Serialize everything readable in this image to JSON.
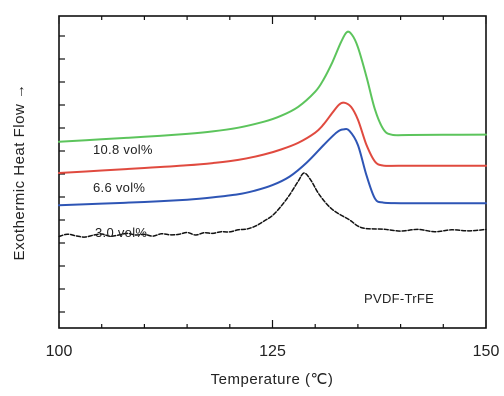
{
  "chart_data": {
    "type": "line",
    "title": "",
    "xlabel": "Temperature (℃)",
    "ylabel": "Exothermic Heat Flow →",
    "xlim": [
      100,
      150
    ],
    "x_ticks": [
      "100",
      "125",
      "150"
    ],
    "y_ticks_labeled": false,
    "grid": false,
    "legend": "inline labels next to curves",
    "series": [
      {
        "name": "10.8 vol%",
        "color": "#5cc45c",
        "style": "solid",
        "points": [
          [
            100,
            0.895
          ],
          [
            105,
            0.907
          ],
          [
            110,
            0.919
          ],
          [
            115,
            0.933
          ],
          [
            118,
            0.945
          ],
          [
            121,
            0.963
          ],
          [
            124,
            0.992
          ],
          [
            126,
            1.02
          ],
          [
            128,
            1.063
          ],
          [
            130,
            1.136
          ],
          [
            131,
            1.196
          ],
          [
            132,
            1.277
          ],
          [
            133,
            1.372
          ],
          [
            133.7,
            1.422
          ],
          [
            134.3,
            1.41
          ],
          [
            135,
            1.35
          ],
          [
            136,
            1.209
          ],
          [
            137,
            1.05
          ],
          [
            138,
            0.955
          ],
          [
            139,
            0.929
          ],
          [
            141,
            0.928
          ],
          [
            145,
            0.929
          ],
          [
            150,
            0.93
          ]
        ]
      },
      {
        "name": "6.6 vol%",
        "color": "#e04a3f",
        "style": "solid",
        "points": [
          [
            100,
            0.745
          ],
          [
            105,
            0.757
          ],
          [
            110,
            0.769
          ],
          [
            115,
            0.782
          ],
          [
            118,
            0.793
          ],
          [
            121,
            0.808
          ],
          [
            124,
            0.834
          ],
          [
            126,
            0.858
          ],
          [
            128,
            0.89
          ],
          [
            130,
            0.939
          ],
          [
            131,
            0.98
          ],
          [
            132,
            1.034
          ],
          [
            132.8,
            1.074
          ],
          [
            133.4,
            1.083
          ],
          [
            134.2,
            1.063
          ],
          [
            135,
            1.002
          ],
          [
            136,
            0.881
          ],
          [
            137,
            0.8
          ],
          [
            138,
            0.781
          ],
          [
            140,
            0.78
          ],
          [
            145,
            0.78
          ],
          [
            150,
            0.78
          ]
        ]
      },
      {
        "name": "3.0 vol%",
        "color": "#2e55b5",
        "style": "solid",
        "points": [
          [
            100,
            0.59
          ],
          [
            105,
            0.598
          ],
          [
            110,
            0.606
          ],
          [
            115,
            0.617
          ],
          [
            118,
            0.628
          ],
          [
            121,
            0.643
          ],
          [
            123,
            0.661
          ],
          [
            125,
            0.687
          ],
          [
            127,
            0.728
          ],
          [
            129,
            0.795
          ],
          [
            131,
            0.88
          ],
          [
            132.5,
            0.94
          ],
          [
            133.3,
            0.955
          ],
          [
            134,
            0.948
          ],
          [
            135,
            0.88
          ],
          [
            136,
            0.735
          ],
          [
            137,
            0.622
          ],
          [
            138,
            0.603
          ],
          [
            140,
            0.6
          ],
          [
            145,
            0.6
          ],
          [
            150,
            0.6
          ]
        ]
      },
      {
        "name": "PVDF-TrFE",
        "color": "#111111",
        "style": "dashed",
        "points": [
          [
            100,
            0.44
          ],
          [
            101,
            0.451
          ],
          [
            102,
            0.443
          ],
          [
            103,
            0.437
          ],
          [
            104,
            0.446
          ],
          [
            105,
            0.452
          ],
          [
            106,
            0.441
          ],
          [
            107,
            0.447
          ],
          [
            108,
            0.455
          ],
          [
            109,
            0.447
          ],
          [
            110,
            0.45
          ],
          [
            111,
            0.442
          ],
          [
            112,
            0.453
          ],
          [
            113,
            0.448
          ],
          [
            114,
            0.45
          ],
          [
            115,
            0.459
          ],
          [
            116,
            0.447
          ],
          [
            117,
            0.458
          ],
          [
            118,
            0.455
          ],
          [
            119,
            0.463
          ],
          [
            120,
            0.462
          ],
          [
            121,
            0.472
          ],
          [
            122,
            0.476
          ],
          [
            123,
            0.49
          ],
          [
            124,
            0.514
          ],
          [
            125,
            0.541
          ],
          [
            126,
            0.585
          ],
          [
            127,
            0.64
          ],
          [
            128,
            0.705
          ],
          [
            128.7,
            0.745
          ],
          [
            129.5,
            0.71
          ],
          [
            130.5,
            0.64
          ],
          [
            132,
            0.57
          ],
          [
            134,
            0.52
          ],
          [
            135,
            0.49
          ],
          [
            136,
            0.478
          ],
          [
            138,
            0.475
          ],
          [
            140,
            0.466
          ],
          [
            142,
            0.474
          ],
          [
            144,
            0.463
          ],
          [
            146,
            0.472
          ],
          [
            148,
            0.467
          ],
          [
            150,
            0.474
          ]
        ]
      }
    ]
  }
}
